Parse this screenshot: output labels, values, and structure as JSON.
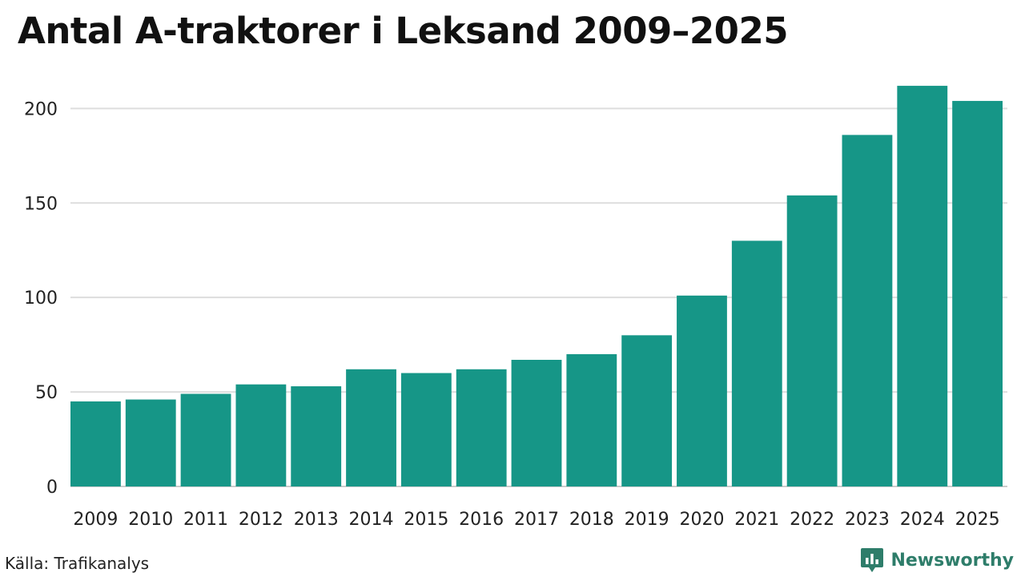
{
  "title": "Antal A-traktorer i Leksand 2009–2025",
  "source": "Källa: Trafikanalys",
  "brand": {
    "name": "Newsworthy",
    "icon": "newsworthy-logo-icon",
    "color": "#2e7d6a"
  },
  "colors": {
    "bar": "#169687",
    "grid": "#dddddd",
    "axis": "#cccccc"
  },
  "chart_data": {
    "type": "bar",
    "title": "Antal A-traktorer i Leksand 2009–2025",
    "categories": [
      "2009",
      "2010",
      "2011",
      "2012",
      "2013",
      "2014",
      "2015",
      "2016",
      "2017",
      "2018",
      "2019",
      "2020",
      "2021",
      "2022",
      "2023",
      "2024",
      "2025"
    ],
    "values": [
      45,
      46,
      49,
      54,
      53,
      62,
      60,
      62,
      67,
      70,
      80,
      101,
      130,
      154,
      186,
      212,
      204
    ],
    "yticks": [
      0,
      50,
      100,
      150,
      200
    ],
    "ylim": [
      0,
      215
    ],
    "xlabel": "",
    "ylabel": "",
    "grid": true
  }
}
